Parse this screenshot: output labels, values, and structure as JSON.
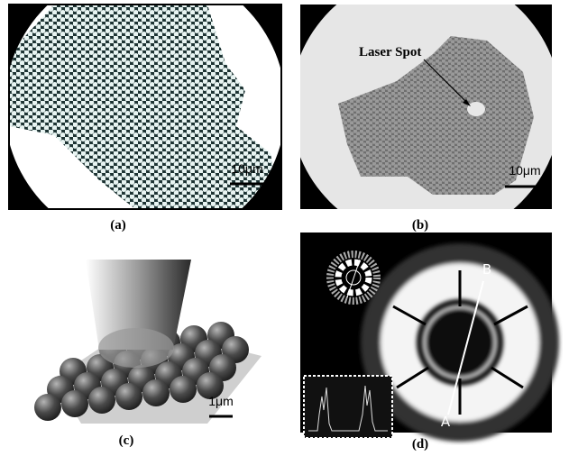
{
  "panels": [
    {
      "label": "(a)",
      "scale_bar": "10μm"
    },
    {
      "label": "(b)",
      "annotation": "Laser Spot",
      "scale_bar": "10μm"
    },
    {
      "label": "(c)",
      "scale_bar": "1μm"
    },
    {
      "label": "(d)",
      "point_a": "A",
      "point_b": "B"
    }
  ]
}
